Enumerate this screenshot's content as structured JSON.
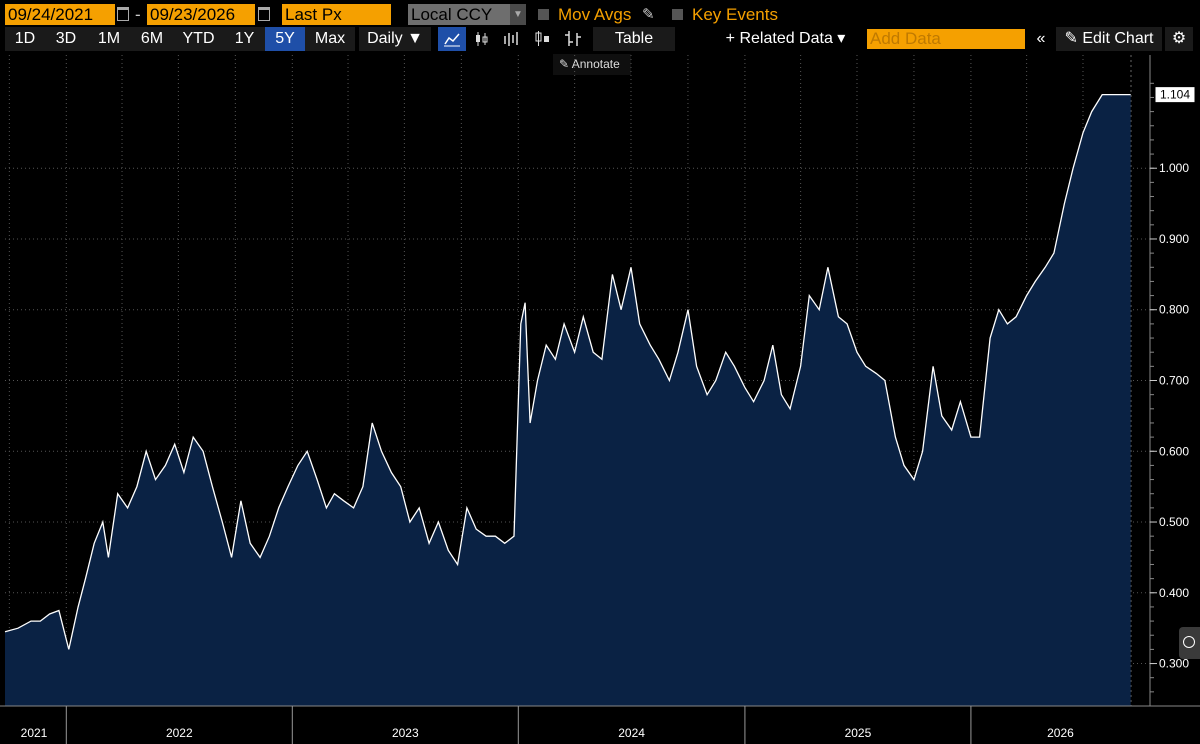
{
  "toolbar": {
    "start_date": "09/24/2021",
    "separator": "-",
    "end_date": "09/23/2026",
    "field": "Last Px",
    "currency": "Local CCY",
    "mov_avgs": "Mov Avgs",
    "key_events": "Key Events",
    "ranges": [
      "1D",
      "3D",
      "1M",
      "6M",
      "YTD",
      "1Y",
      "5Y",
      "Max"
    ],
    "active_range": "5Y",
    "frequency": "Daily ▼",
    "table": "Table",
    "related_data": "+ Related Data ▾",
    "add_data_placeholder": "Add Data",
    "collapse": "«",
    "edit_chart": "Edit Chart",
    "annotate": "Annotate"
  },
  "colors": {
    "accent": "#f5a000",
    "area_fill": "#0a2244",
    "line": "#ffffff",
    "active": "#1f4fa8"
  },
  "chart_data": {
    "type": "area",
    "title": "",
    "xlabel": "",
    "ylabel": "",
    "last_value_label": "1.104",
    "ylim": [
      0.24,
      1.16
    ],
    "xlim": [
      "2021-09-24",
      "2026-09-23"
    ],
    "y_ticks": [
      "0.300",
      "0.400",
      "0.500",
      "0.600",
      "0.700",
      "0.800",
      "0.900",
      "1.000"
    ],
    "x_ticks": [
      {
        "label": "2021",
        "date": "2021-09-24"
      },
      {
        "label": "2022",
        "date": "2022-01-01"
      },
      {
        "label": "2023",
        "date": "2023-01-01"
      },
      {
        "label": "2024",
        "date": "2024-01-01"
      },
      {
        "label": "2025",
        "date": "2025-01-01"
      },
      {
        "label": "2026",
        "date": "2026-01-01"
      }
    ],
    "grid": true,
    "series": [
      {
        "x": [
          "2021-09-24",
          "2021-10-15",
          "2021-11-05",
          "2021-11-20",
          "2021-12-05",
          "2021-12-20",
          "2022-01-05",
          "2022-01-20",
          "2022-02-01",
          "2022-02-15",
          "2022-03-01",
          "2022-03-10",
          "2022-03-25",
          "2022-04-10",
          "2022-04-25",
          "2022-05-10",
          "2022-05-25",
          "2022-06-10",
          "2022-06-25",
          "2022-07-10",
          "2022-07-25",
          "2022-08-10",
          "2022-08-25",
          "2022-09-10",
          "2022-09-25",
          "2022-10-10",
          "2022-10-25",
          "2022-11-10",
          "2022-11-25",
          "2022-12-10",
          "2022-12-25",
          "2023-01-10",
          "2023-01-25",
          "2023-02-10",
          "2023-02-25",
          "2023-03-10",
          "2023-03-25",
          "2023-04-10",
          "2023-04-25",
          "2023-05-10",
          "2023-05-25",
          "2023-06-10",
          "2023-06-25",
          "2023-07-10",
          "2023-07-25",
          "2023-08-10",
          "2023-08-25",
          "2023-09-10",
          "2023-09-25",
          "2023-10-10",
          "2023-10-25",
          "2023-11-10",
          "2023-11-25",
          "2023-12-10",
          "2023-12-25",
          "2024-01-05",
          "2024-01-12",
          "2024-01-20",
          "2024-02-01",
          "2024-02-15",
          "2024-03-01",
          "2024-03-15",
          "2024-04-01",
          "2024-04-15",
          "2024-05-01",
          "2024-05-15",
          "2024-06-01",
          "2024-06-15",
          "2024-07-01",
          "2024-07-15",
          "2024-08-01",
          "2024-08-15",
          "2024-09-01",
          "2024-09-15",
          "2024-10-01",
          "2024-10-15",
          "2024-11-01",
          "2024-11-15",
          "2024-12-01",
          "2024-12-15",
          "2025-01-01",
          "2025-01-15",
          "2025-02-01",
          "2025-02-15",
          "2025-03-01",
          "2025-03-15",
          "2025-04-01",
          "2025-04-15",
          "2025-05-01",
          "2025-05-15",
          "2025-06-01",
          "2025-06-15",
          "2025-07-01",
          "2025-07-15",
          "2025-08-01",
          "2025-08-15",
          "2025-09-01",
          "2025-09-15",
          "2025-10-01",
          "2025-10-15",
          "2025-11-01",
          "2025-11-15",
          "2025-12-01",
          "2025-12-15",
          "2026-01-01",
          "2026-01-15",
          "2026-02-01",
          "2026-02-15",
          "2026-03-01",
          "2026-03-15",
          "2026-04-01",
          "2026-04-15",
          "2026-05-01",
          "2026-05-15",
          "2026-06-01",
          "2026-06-15",
          "2026-07-01",
          "2026-07-15",
          "2026-08-01",
          "2026-08-15",
          "2026-09-01",
          "2026-09-10",
          "2026-09-16"
        ],
        "values": [
          0.345,
          0.35,
          0.36,
          0.36,
          0.37,
          0.375,
          0.32,
          0.38,
          0.42,
          0.47,
          0.5,
          0.45,
          0.54,
          0.52,
          0.55,
          0.6,
          0.56,
          0.58,
          0.61,
          0.57,
          0.62,
          0.6,
          0.55,
          0.5,
          0.45,
          0.53,
          0.47,
          0.45,
          0.48,
          0.52,
          0.55,
          0.58,
          0.6,
          0.56,
          0.52,
          0.54,
          0.53,
          0.52,
          0.55,
          0.64,
          0.6,
          0.57,
          0.55,
          0.5,
          0.52,
          0.47,
          0.5,
          0.46,
          0.44,
          0.52,
          0.49,
          0.48,
          0.48,
          0.47,
          0.48,
          0.78,
          0.81,
          0.64,
          0.7,
          0.75,
          0.73,
          0.78,
          0.74,
          0.79,
          0.74,
          0.73,
          0.85,
          0.8,
          0.86,
          0.78,
          0.75,
          0.73,
          0.7,
          0.74,
          0.8,
          0.72,
          0.68,
          0.7,
          0.74,
          0.72,
          0.69,
          0.67,
          0.7,
          0.75,
          0.68,
          0.66,
          0.72,
          0.82,
          0.8,
          0.86,
          0.79,
          0.78,
          0.74,
          0.72,
          0.71,
          0.7,
          0.62,
          0.58,
          0.56,
          0.6,
          0.72,
          0.65,
          0.63,
          0.67,
          0.62,
          0.62,
          0.76,
          0.8,
          0.78,
          0.79,
          0.82,
          0.84,
          0.86,
          0.88,
          0.95,
          1.0,
          1.05,
          1.08,
          1.104,
          1.104,
          1.104,
          1.104,
          1.104
        ]
      }
    ]
  }
}
